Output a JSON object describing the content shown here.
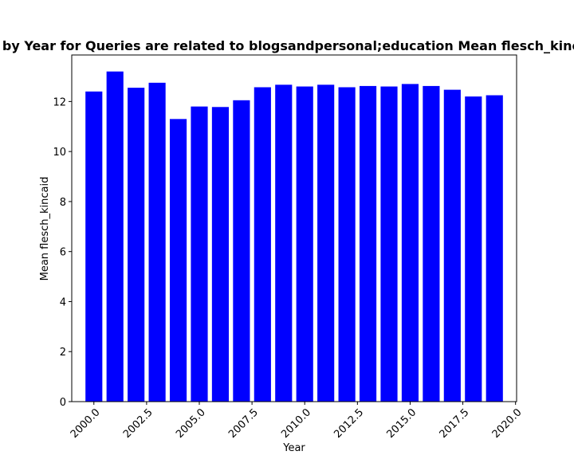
{
  "chart_data": {
    "type": "bar",
    "title": "Mean flesch_kincaid by Year for Queries are related to blogsandpersonal;education Mean flesch_kincaid in privacy policies",
    "xlabel": "Year",
    "ylabel": "Mean flesch_kincaid",
    "color": "#0000ff",
    "x": [
      2000,
      2001,
      2002,
      2003,
      2004,
      2005,
      2006,
      2007,
      2008,
      2009,
      2010,
      2011,
      2012,
      2013,
      2014,
      2015,
      2016,
      2017,
      2018,
      2019
    ],
    "values": [
      12.4,
      13.2,
      12.55,
      12.75,
      11.3,
      11.8,
      11.78,
      12.05,
      12.57,
      12.67,
      12.6,
      12.67,
      12.57,
      12.62,
      12.6,
      12.7,
      12.62,
      12.47,
      12.2,
      12.25
    ],
    "bar_width": 0.8,
    "xlim": [
      1998.95,
      2020.05
    ],
    "ylim": [
      0,
      13.86
    ],
    "xticks": [
      2000.0,
      2002.5,
      2005.0,
      2007.5,
      2010.0,
      2012.5,
      2015.0,
      2017.5,
      2020.0
    ],
    "xtick_labels": [
      "2000.0",
      "2002.5",
      "2005.0",
      "2007.5",
      "2010.0",
      "2012.5",
      "2015.0",
      "2017.5",
      "2020.0"
    ],
    "yticks": [
      0,
      2,
      4,
      6,
      8,
      10,
      12
    ],
    "ytick_labels": [
      "0",
      "2",
      "4",
      "6",
      "8",
      "10",
      "12"
    ],
    "grid": false,
    "legend": "none"
  }
}
